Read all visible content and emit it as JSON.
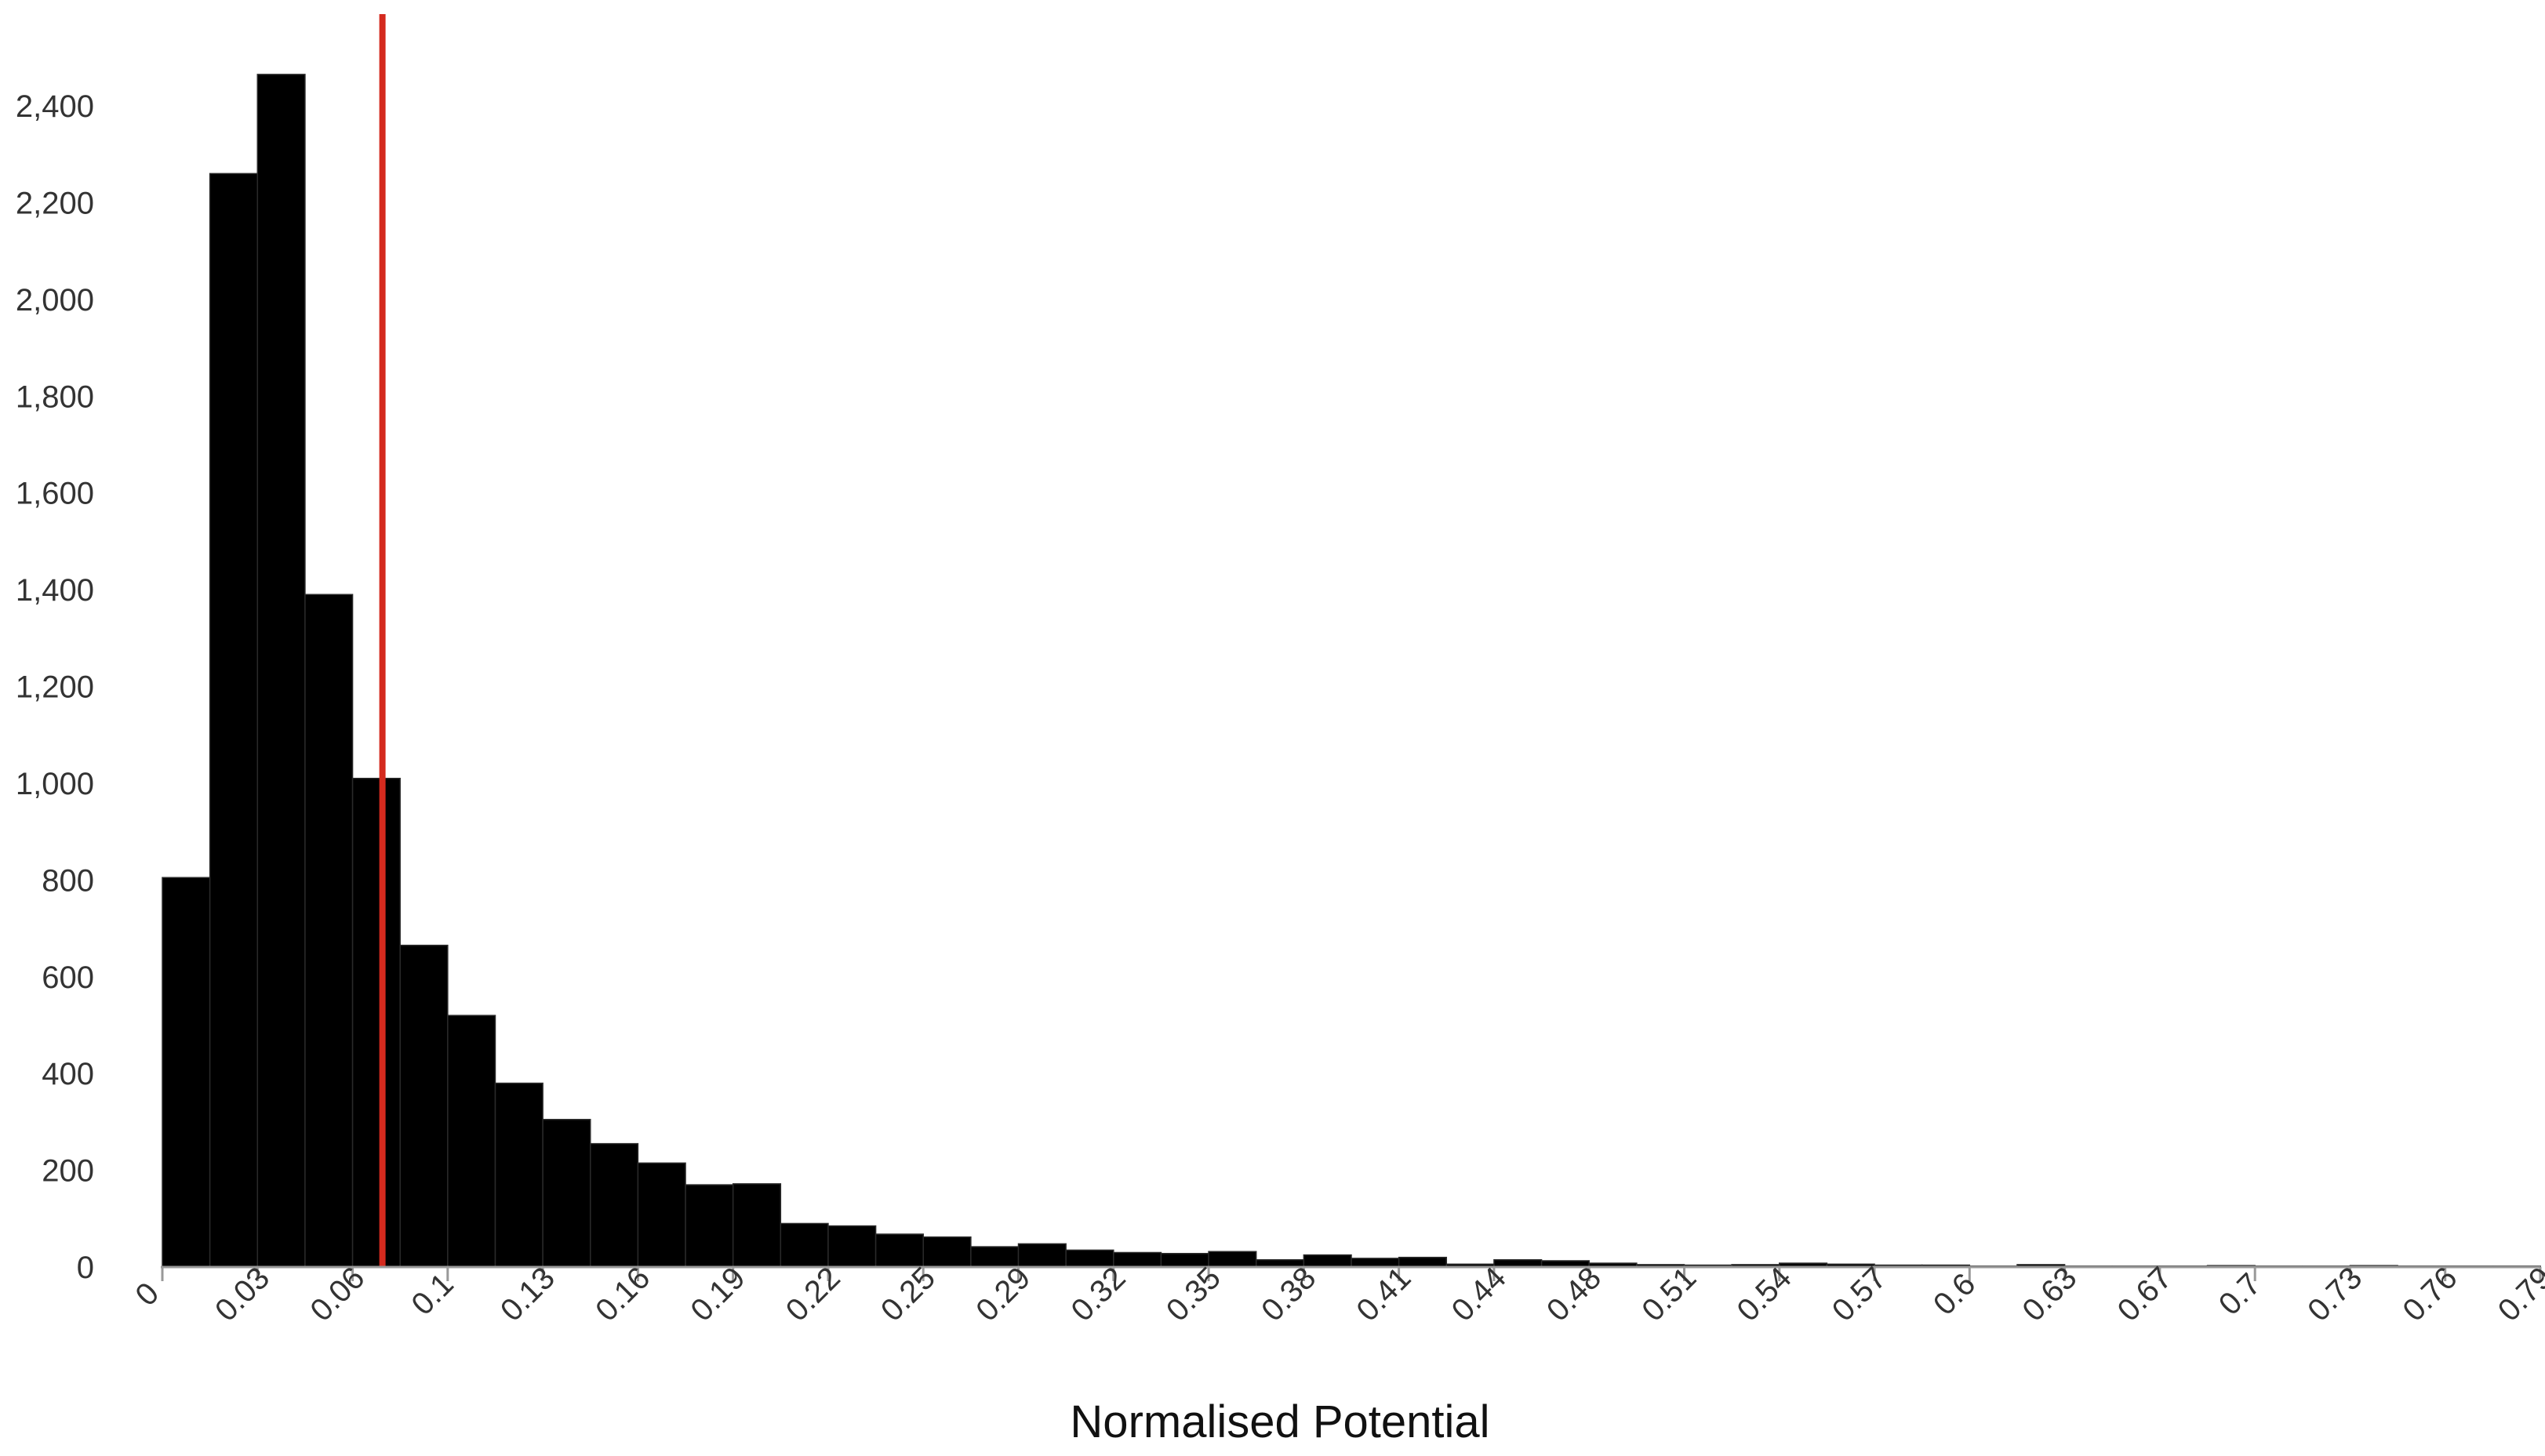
{
  "chart_data": {
    "type": "bar",
    "title": "",
    "xlabel": "Normalised Potential",
    "ylabel": "",
    "bin_width": 0.0161,
    "x_range": [
      0,
      0.805
    ],
    "ylim": [
      0,
      2400
    ],
    "y_ticks": [
      0,
      200,
      400,
      600,
      800,
      1000,
      1200,
      1400,
      1600,
      1800,
      2000,
      2200,
      2400
    ],
    "y_tick_labels": [
      "0",
      "200",
      "400",
      "600",
      "800",
      "1,000",
      "1,200",
      "1,400",
      "1,600",
      "1,800",
      "2,000",
      "2,200",
      "2,400"
    ],
    "x_tick_labels": [
      "0",
      "0.03",
      "0.06",
      "0.1",
      "0.13",
      "0.16",
      "0.19",
      "0.22",
      "0.25",
      "0.29",
      "0.32",
      "0.35",
      "0.38",
      "0.41",
      "0.44",
      "0.48",
      "0.51",
      "0.54",
      "0.57",
      "0.6",
      "0.63",
      "0.67",
      "0.7",
      "0.73",
      "0.76",
      "0.79"
    ],
    "values": [
      805,
      2260,
      2465,
      1390,
      1010,
      665,
      520,
      380,
      305,
      255,
      215,
      170,
      172,
      90,
      85,
      68,
      62,
      42,
      48,
      35,
      30,
      28,
      32,
      15,
      25,
      18,
      20,
      6,
      15,
      13,
      8,
      5,
      4,
      5,
      8,
      6,
      4,
      4,
      2,
      5,
      2,
      2,
      2,
      3,
      2,
      2,
      3,
      2,
      2,
      2
    ],
    "reference_line": {
      "x": 0.0745,
      "color": "#d42a1e"
    },
    "bar_color": "#000000",
    "grid": false,
    "legend": "none"
  }
}
